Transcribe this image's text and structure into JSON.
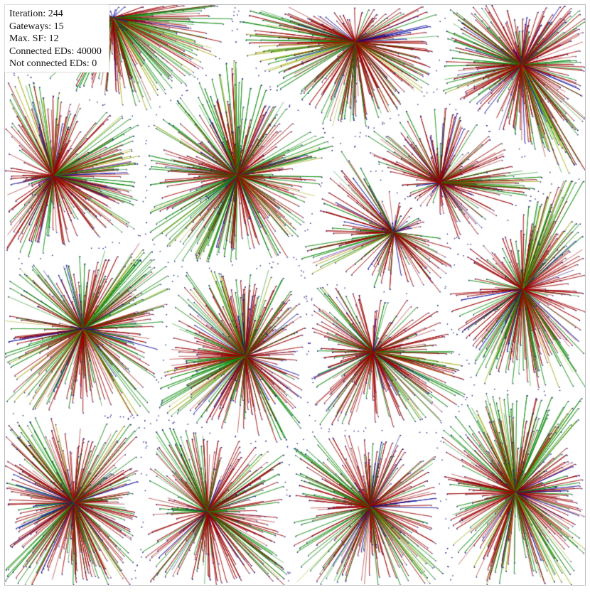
{
  "stats": {
    "iteration": "Iteration: 244",
    "gateways": "Gateways: 15",
    "max_sf": "Max. SF: 12",
    "connected": "Connected EDs: 40000",
    "not_connected": "Not connected EDs: 0"
  },
  "simulation": {
    "gateway_count": 15,
    "connected_ed_count": 40000,
    "not_connected_ed_count": 0,
    "max_sf": 12,
    "link_colors": {
      "near": "#0a0a9c",
      "mid": "#9b0000",
      "far": "#0b8a0b",
      "edge": "#a8b01a"
    },
    "node_color": "#1a1a8c",
    "background": "#ffffff"
  }
}
